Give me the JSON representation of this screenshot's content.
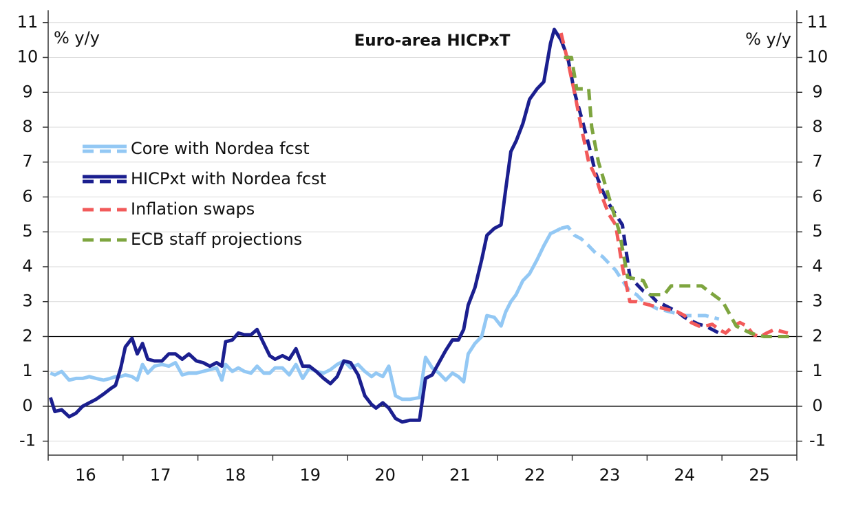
{
  "chart_data": {
    "type": "line",
    "title": "Euro-area HICPxT",
    "y_label_left": "% y/y",
    "y_label_right": "% y/y",
    "ylim": [
      -1.4,
      11.35
    ],
    "yticks": [
      -1,
      0,
      1,
      2,
      3,
      4,
      5,
      6,
      7,
      8,
      9,
      10,
      11
    ],
    "xlim": [
      16,
      26
    ],
    "xticks": [
      {
        "value": 16.5,
        "label": "16"
      },
      {
        "value": 17.5,
        "label": "17"
      },
      {
        "value": 18.5,
        "label": "18"
      },
      {
        "value": 19.5,
        "label": "19"
      },
      {
        "value": 20.5,
        "label": "20"
      },
      {
        "value": 21.5,
        "label": "21"
      },
      {
        "value": 22.5,
        "label": "22"
      },
      {
        "value": 23.5,
        "label": "23"
      },
      {
        "value": 24.5,
        "label": "24"
      },
      {
        "value": 25.5,
        "label": "25"
      }
    ],
    "xtick_marks": [
      16,
      17,
      18,
      19,
      20,
      21,
      22,
      23,
      24,
      25,
      26
    ],
    "hlines": [
      0,
      2
    ],
    "grid": true,
    "series": [
      {
        "name": "Core with Nordea fcst",
        "color": "#93c8f4",
        "forecast_from": 22.85,
        "x": [
          16.03,
          16.09,
          16.18,
          16.28,
          16.37,
          16.46,
          16.55,
          16.64,
          16.74,
          16.83,
          16.9,
          16.97,
          17.03,
          17.12,
          17.19,
          17.26,
          17.33,
          17.42,
          17.52,
          17.61,
          17.7,
          17.79,
          17.88,
          17.98,
          18.07,
          18.16,
          18.25,
          18.32,
          18.37,
          18.46,
          18.54,
          18.62,
          18.71,
          18.79,
          18.88,
          18.96,
          19.03,
          19.13,
          19.22,
          19.31,
          19.4,
          19.49,
          19.58,
          19.68,
          19.77,
          19.86,
          19.95,
          20.04,
          20.14,
          20.23,
          20.32,
          20.38,
          20.47,
          20.55,
          20.64,
          20.73,
          20.83,
          20.96,
          21.04,
          21.13,
          21.22,
          21.31,
          21.4,
          21.48,
          21.55,
          21.61,
          21.7,
          21.79,
          21.86,
          21.96,
          22.05,
          22.11,
          22.18,
          22.25,
          22.34,
          22.43,
          22.53,
          22.62,
          22.71,
          22.76,
          22.85,
          22.94,
          23.03,
          23.12,
          23.22,
          23.31,
          23.4,
          23.49,
          23.58,
          23.67,
          23.77,
          23.86,
          23.95,
          24.04,
          24.13,
          24.23,
          24.32,
          24.41,
          24.5,
          24.59,
          24.69,
          24.78,
          24.87,
          24.96
        ],
        "values": [
          0.95,
          0.9,
          1.0,
          0.75,
          0.8,
          0.8,
          0.85,
          0.8,
          0.75,
          0.8,
          0.85,
          0.85,
          0.9,
          0.85,
          0.75,
          1.2,
          0.95,
          1.15,
          1.2,
          1.15,
          1.25,
          0.9,
          0.95,
          0.95,
          1.0,
          1.05,
          1.1,
          0.75,
          1.2,
          1.0,
          1.1,
          1.0,
          0.95,
          1.15,
          0.95,
          0.95,
          1.1,
          1.1,
          0.9,
          1.2,
          0.8,
          1.1,
          1.0,
          0.95,
          1.05,
          1.2,
          1.3,
          1.1,
          1.2,
          1.0,
          0.85,
          0.95,
          0.85,
          1.15,
          0.3,
          0.2,
          0.2,
          0.25,
          1.4,
          1.1,
          0.95,
          0.75,
          0.95,
          0.85,
          0.7,
          1.5,
          1.8,
          2.0,
          2.6,
          2.55,
          2.3,
          2.7,
          3.0,
          3.2,
          3.6,
          3.8,
          4.2,
          4.6,
          4.95,
          5.0,
          5.1,
          5.15,
          4.9,
          4.8,
          4.6,
          4.4,
          4.3,
          4.1,
          3.9,
          3.6,
          3.3,
          3.2,
          3.0,
          2.9,
          2.8,
          2.75,
          2.7,
          2.65,
          2.6,
          2.6,
          2.6,
          2.6,
          2.55,
          2.5
        ]
      },
      {
        "name": "HICPxt with Nordea fcst",
        "color": "#1b1f8f",
        "forecast_from": 22.85,
        "x": [
          16.03,
          16.09,
          16.18,
          16.28,
          16.37,
          16.46,
          16.55,
          16.64,
          16.74,
          16.83,
          16.9,
          16.97,
          17.03,
          17.12,
          17.19,
          17.26,
          17.33,
          17.42,
          17.52,
          17.61,
          17.7,
          17.79,
          17.88,
          17.98,
          18.07,
          18.16,
          18.25,
          18.32,
          18.37,
          18.46,
          18.54,
          18.62,
          18.71,
          18.79,
          18.88,
          18.96,
          19.03,
          19.13,
          19.22,
          19.31,
          19.4,
          19.49,
          19.58,
          19.68,
          19.77,
          19.86,
          19.95,
          20.04,
          20.14,
          20.23,
          20.32,
          20.38,
          20.47,
          20.55,
          20.64,
          20.73,
          20.83,
          20.96,
          21.04,
          21.13,
          21.22,
          21.31,
          21.4,
          21.48,
          21.55,
          21.61,
          21.7,
          21.79,
          21.86,
          21.96,
          22.05,
          22.11,
          22.18,
          22.25,
          22.34,
          22.43,
          22.53,
          22.62,
          22.71,
          22.76,
          22.85,
          22.94,
          23.03,
          23.12,
          23.22,
          23.31,
          23.4,
          23.49,
          23.58,
          23.67,
          23.77,
          23.86,
          23.95,
          24.04,
          24.13,
          24.23,
          24.32,
          24.41,
          24.5,
          24.59,
          24.69,
          24.78,
          24.87,
          24.96
        ],
        "values": [
          0.25,
          -0.15,
          -0.1,
          -0.3,
          -0.2,
          0,
          0.1,
          0.2,
          0.35,
          0.5,
          0.6,
          1.1,
          1.7,
          1.95,
          1.5,
          1.8,
          1.35,
          1.3,
          1.3,
          1.5,
          1.5,
          1.35,
          1.5,
          1.3,
          1.25,
          1.15,
          1.25,
          1.15,
          1.85,
          1.9,
          2.1,
          2.05,
          2.05,
          2.2,
          1.8,
          1.45,
          1.35,
          1.45,
          1.35,
          1.65,
          1.15,
          1.15,
          1.0,
          0.8,
          0.65,
          0.85,
          1.3,
          1.25,
          0.9,
          0.3,
          0.05,
          -0.05,
          0.1,
          -0.05,
          -0.35,
          -0.45,
          -0.4,
          -0.4,
          0.8,
          0.9,
          1.25,
          1.6,
          1.9,
          1.9,
          2.2,
          2.9,
          3.4,
          4.2,
          4.9,
          5.1,
          5.2,
          6.2,
          7.3,
          7.6,
          8.1,
          8.8,
          9.1,
          9.3,
          10.4,
          10.8,
          10.5,
          10.0,
          9.0,
          8.3,
          7.5,
          6.7,
          6.2,
          5.8,
          5.5,
          5.2,
          3.7,
          3.5,
          3.3,
          3.2,
          3.0,
          2.9,
          2.8,
          2.7,
          2.55,
          2.45,
          2.35,
          2.3,
          2.2,
          2.1
        ]
      },
      {
        "name": "Inflation swaps",
        "color": "#f25a5a",
        "dashed": true,
        "x": [
          22.85,
          22.94,
          23.03,
          23.12,
          23.22,
          23.31,
          23.4,
          23.49,
          23.58,
          23.67,
          23.77,
          23.86,
          23.95,
          24.04,
          24.13,
          24.23,
          24.32,
          24.41,
          24.5,
          24.59,
          24.69,
          24.78,
          24.87,
          24.96,
          25.05,
          25.15,
          25.24,
          25.33,
          25.42,
          25.51,
          25.6,
          25.7,
          25.79,
          25.88
        ],
        "values": [
          10.7,
          9.9,
          9.0,
          8.0,
          7.0,
          6.6,
          6.0,
          5.5,
          5.2,
          4.0,
          3.0,
          3.0,
          2.95,
          2.9,
          2.85,
          2.8,
          2.75,
          2.7,
          2.6,
          2.4,
          2.3,
          2.3,
          2.35,
          2.2,
          2.1,
          2.3,
          2.4,
          2.3,
          2.05,
          2.0,
          2.1,
          2.2,
          2.15,
          2.1
        ]
      },
      {
        "name": "ECB staff projections",
        "color": "#7ea53f",
        "dashed": true,
        "x": [
          22.89,
          22.99,
          23.06,
          23.22,
          23.26,
          23.35,
          23.49,
          23.63,
          23.74,
          23.95,
          24.04,
          24.23,
          24.32,
          24.73,
          24.82,
          25.01,
          25.19,
          25.38,
          25.56,
          25.97
        ],
        "values": [
          10.0,
          10.0,
          9.1,
          9.1,
          8.0,
          7.0,
          6.0,
          5.0,
          3.7,
          3.6,
          3.2,
          3.2,
          3.45,
          3.45,
          3.3,
          3.0,
          2.3,
          2.1,
          2.0,
          2.0
        ]
      }
    ]
  }
}
